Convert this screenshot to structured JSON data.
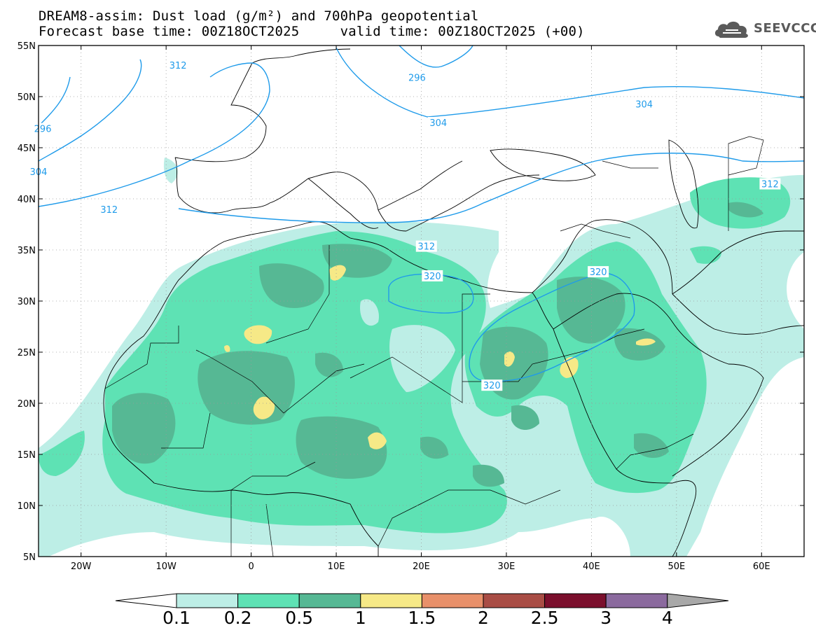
{
  "header": {
    "title_line1": "DREAM8-assim: Dust load (g/m²) and 700hPa geopotential",
    "title_line2": "Forecast base time: 00Z18OCT2025     valid time: 00Z18OCT2025 (+00)"
  },
  "logo": {
    "text": "SEEVCCC",
    "icon": "cloud-logo-icon"
  },
  "map": {
    "lon_range": [
      -25,
      65
    ],
    "lat_range": [
      5,
      55
    ],
    "lon_ticks": [
      {
        "lon": -20,
        "label": "20W"
      },
      {
        "lon": -10,
        "label": "10W"
      },
      {
        "lon": 0,
        "label": "0"
      },
      {
        "lon": 10,
        "label": "10E"
      },
      {
        "lon": 20,
        "label": "20E"
      },
      {
        "lon": 30,
        "label": "30E"
      },
      {
        "lon": 40,
        "label": "40E"
      },
      {
        "lon": 50,
        "label": "50E"
      },
      {
        "lon": 60,
        "label": "60E"
      }
    ],
    "lat_ticks": [
      {
        "lat": 55,
        "label": "55N"
      },
      {
        "lat": 50,
        "label": "50N"
      },
      {
        "lat": 45,
        "label": "45N"
      },
      {
        "lat": 40,
        "label": "40N"
      },
      {
        "lat": 35,
        "label": "35N"
      },
      {
        "lat": 30,
        "label": "30N"
      },
      {
        "lat": 25,
        "label": "25N"
      },
      {
        "lat": 20,
        "label": "20N"
      },
      {
        "lat": 15,
        "label": "15N"
      },
      {
        "lat": 10,
        "label": "10N"
      },
      {
        "lat": 5,
        "label": "5N"
      }
    ],
    "grid": true,
    "contour_color": "#1f9bea",
    "contour_labels": [
      {
        "text": "312",
        "lon": -8.6,
        "lat": 53.0
      },
      {
        "text": "296",
        "lon": 19.5,
        "lat": 51.8
      },
      {
        "text": "304",
        "lon": 46.2,
        "lat": 49.2
      },
      {
        "text": "304",
        "lon": 22.0,
        "lat": 47.4
      },
      {
        "text": "296",
        "lon": -24.5,
        "lat": 46.8
      },
      {
        "text": "304",
        "lon": -25.0,
        "lat": 42.6
      },
      {
        "text": "312",
        "lon": 61.0,
        "lat": 41.4
      },
      {
        "text": "312",
        "lon": -16.7,
        "lat": 38.9
      },
      {
        "text": "312",
        "lon": 20.6,
        "lat": 35.3
      },
      {
        "text": "320",
        "lon": 21.3,
        "lat": 32.4
      },
      {
        "text": "320",
        "lon": 40.8,
        "lat": 32.8
      },
      {
        "text": "320",
        "lon": 28.3,
        "lat": 21.7
      }
    ]
  },
  "colorbar": {
    "labels": [
      "0.1",
      "0.2",
      "0.5",
      "1",
      "1.5",
      "2",
      "2.5",
      "3",
      "4"
    ],
    "colors": [
      "#ffffff",
      "#bdeee6",
      "#5ee2b4",
      "#56b894",
      "#f6e987",
      "#e8906a",
      "#a94d45",
      "#7b0f2d",
      "#8b6a9e",
      "#a8a8a8"
    ]
  }
}
